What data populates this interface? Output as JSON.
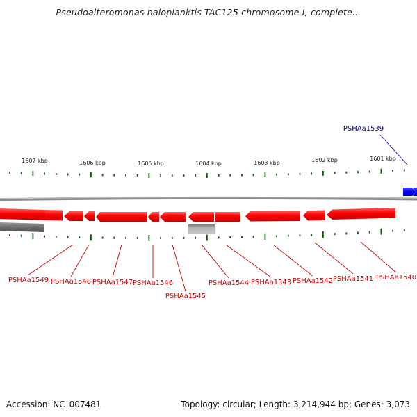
{
  "title": "Pseudoalteromonas haloplanktis TAC125 chromosome I, complete...",
  "footer": {
    "accession": "Accession: NC_007481",
    "topology": "Topology: circular; Length: 3,214,944 bp; Genes: 3,073"
  },
  "colors": {
    "gene_red": "#ff0000",
    "gene_blue": "#0000ff",
    "label_red": "#cc0000",
    "label_blue": "#000099",
    "tick_green": "#006600",
    "backbone_gray": "#888888",
    "feature_gray": "#666666",
    "feature_light_gray": "#aaaaaa"
  },
  "ticks": [
    {
      "label": "1607 kbp"
    },
    {
      "label": "1606 kbp"
    },
    {
      "label": "1605 kbp"
    },
    {
      "label": "1604 kbp"
    },
    {
      "label": "1603 kbp"
    },
    {
      "label": "1602 kbp"
    },
    {
      "label": "1601 kbp"
    }
  ],
  "genes_bottom": [
    {
      "label": "PSHAa1549"
    },
    {
      "label": "PSHAa1548"
    },
    {
      "label": "PSHAa1547"
    },
    {
      "label": "PSHAa1546"
    },
    {
      "label": "PSHAa1545"
    },
    {
      "label": "PSHAa1544"
    },
    {
      "label": "PSHAa1543"
    },
    {
      "label": "PSHAa1542"
    },
    {
      "label": "PSHAa1541"
    },
    {
      "label": "PSHAa1540"
    }
  ],
  "gene_top": {
    "label": "PSHAa1539"
  }
}
